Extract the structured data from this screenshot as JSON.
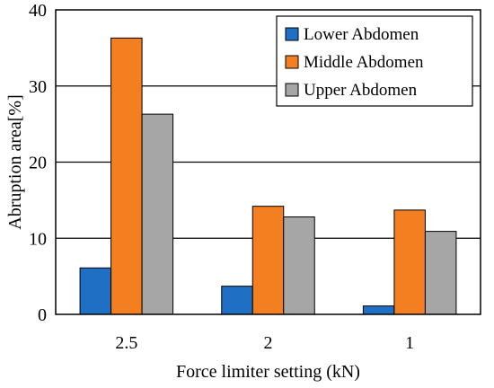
{
  "chart_data": {
    "type": "bar",
    "title": "",
    "xlabel": "Force limiter setting (kN)",
    "ylabel": "Abruption area[%]",
    "categories": [
      "2.5",
      "2",
      "1"
    ],
    "ylim": [
      0,
      40
    ],
    "yticks": [
      0,
      10,
      20,
      30,
      40
    ],
    "grid": "horizontal",
    "legend_position": "top-right",
    "series": [
      {
        "name": "Lower Abdomen",
        "color": "#1f6fc5",
        "values": [
          6.1,
          3.7,
          1.1
        ]
      },
      {
        "name": "Middle Abdomen",
        "color": "#f47f20",
        "values": [
          36.3,
          14.2,
          13.7
        ]
      },
      {
        "name": "Upper Abdomen",
        "color": "#a6a6a6",
        "values": [
          26.3,
          12.8,
          10.9
        ]
      }
    ]
  }
}
